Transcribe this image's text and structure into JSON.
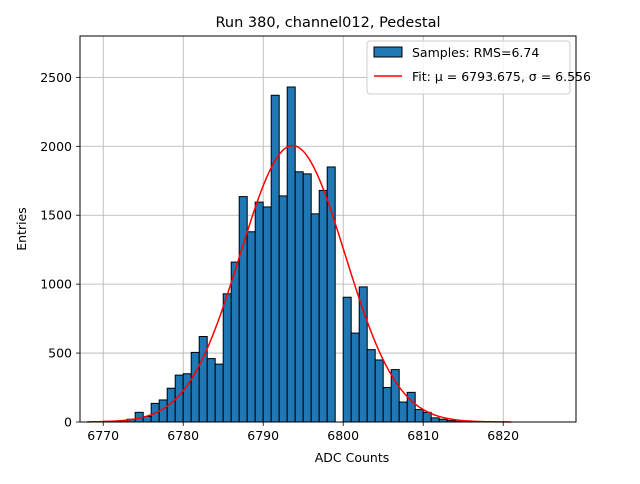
{
  "chart_data": {
    "type": "bar",
    "title": "Run 380, channel012, Pedestal",
    "xlabel": "ADC Counts",
    "ylabel": "Entries",
    "xlim": [
      6767.1,
      6829.1
    ],
    "ylim": [
      0,
      2800
    ],
    "xticks": [
      6770,
      6780,
      6790,
      6800,
      6810,
      6820
    ],
    "yticks": [
      0,
      500,
      1000,
      1500,
      2000,
      2500
    ],
    "grid": true,
    "legend": {
      "position": "top-right",
      "entries": [
        {
          "kind": "patch",
          "label": "Samples: RMS=6.74",
          "color": "#1f77b4"
        },
        {
          "kind": "line",
          "label": "Fit: μ = 6793.675, σ = 6.556",
          "color": "#ff0000"
        }
      ]
    },
    "histogram": {
      "bin_width": 1,
      "color": "#1f77b4",
      "edge_color": "#000000",
      "bin_left_edges": [
        6770,
        6771,
        6772,
        6773,
        6774,
        6775,
        6776,
        6777,
        6778,
        6779,
        6780,
        6781,
        6782,
        6783,
        6784,
        6785,
        6786,
        6787,
        6788,
        6789,
        6790,
        6791,
        6792,
        6793,
        6794,
        6795,
        6796,
        6797,
        6798,
        6799,
        6800,
        6801,
        6802,
        6803,
        6804,
        6805,
        6806,
        6807,
        6808,
        6809,
        6810,
        6811,
        6812,
        6813,
        6814,
        6815,
        6816,
        6817,
        6818,
        6819,
        6820,
        6821,
        6822,
        6823,
        6824,
        6825,
        6826
      ],
      "counts": [
        5,
        5,
        10,
        20,
        70,
        40,
        135,
        160,
        245,
        340,
        350,
        505,
        620,
        460,
        420,
        930,
        1160,
        1635,
        1380,
        1595,
        1560,
        2370,
        1640,
        2430,
        1815,
        1800,
        1510,
        1680,
        1850,
        0,
        905,
        645,
        980,
        525,
        450,
        250,
        380,
        145,
        215,
        90,
        70,
        30,
        20,
        10,
        5,
        5,
        2,
        0,
        0,
        0,
        0,
        0,
        0,
        0,
        0,
        0,
        0
      ]
    },
    "fit": {
      "name": "Fit",
      "mu": 6793.675,
      "sigma": 6.556,
      "amplitude": 2005,
      "x_range": [
        6768,
        6821
      ],
      "color": "#ff0000"
    }
  }
}
